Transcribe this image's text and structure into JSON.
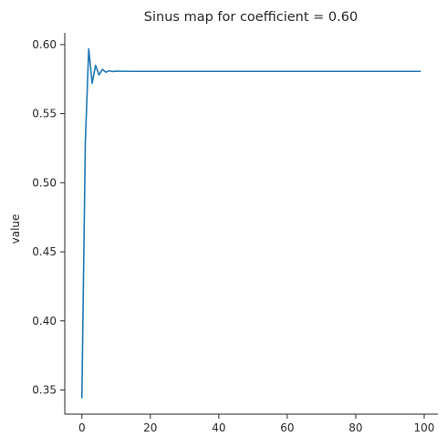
{
  "chart_data": {
    "type": "line",
    "title": "Sinus map for coefficient = 0.60",
    "xlabel": "",
    "ylabel": "value",
    "xlim": [
      -5,
      104
    ],
    "ylim": [
      0.3325,
      0.6085
    ],
    "xticks": [
      0,
      20,
      40,
      60,
      80,
      100
    ],
    "xtick_labels": [
      "0",
      "20",
      "40",
      "60",
      "80",
      "100"
    ],
    "yticks": [
      0.35,
      0.4,
      0.45,
      0.5,
      0.55,
      0.6
    ],
    "ytick_labels": [
      "0.35",
      "0.40",
      "0.45",
      "0.50",
      "0.55",
      "0.60"
    ],
    "grid": false,
    "color": "#1f77b4",
    "series": [
      {
        "x": [
          0,
          1,
          2,
          3,
          4,
          5,
          6,
          7,
          8,
          9,
          10,
          15,
          20,
          30,
          40,
          50,
          60,
          70,
          80,
          90,
          99
        ],
        "y": [
          0.344,
          0.529,
          0.597,
          0.572,
          0.585,
          0.578,
          0.582,
          0.58,
          0.581,
          0.5805,
          0.5807,
          0.5806,
          0.5806,
          0.5806,
          0.5806,
          0.5806,
          0.5806,
          0.5806,
          0.5806,
          0.5806,
          0.5806
        ]
      }
    ]
  }
}
